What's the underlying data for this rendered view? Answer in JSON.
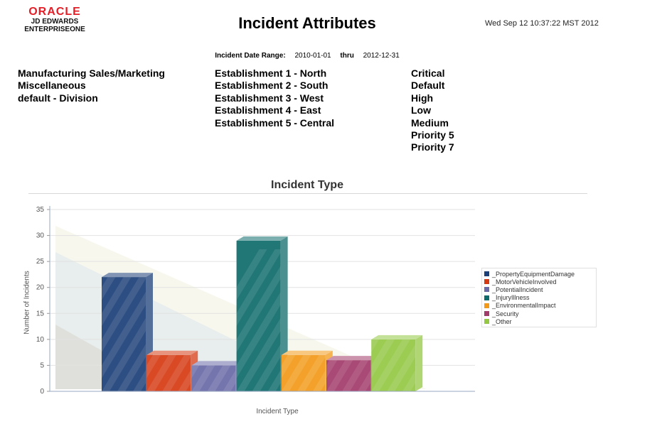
{
  "header": {
    "brand": "ORACLE",
    "product_line1": "JD EDWARDS",
    "product_line2": "ENTERPRISEONE",
    "title": "Incident Attributes",
    "timestamp": "Wed Sep 12 10:37:22 MST 2012"
  },
  "date_range": {
    "label": "Incident Date Range:",
    "from": "2010-01-01",
    "thru_label": "thru",
    "to": "2012-12-31"
  },
  "filters": {
    "business_units": [
      "Manufacturing Sales/Marketing",
      "Miscellaneous",
      "default - Division"
    ],
    "establishments": [
      "Establishment 1 - North",
      "Establishment 2 - South",
      "Establishment 3 - West",
      "Establishment 4 - East",
      "Establishment 5 - Central"
    ],
    "priorities": [
      "Critical",
      "Default",
      "High",
      "Low",
      "Medium",
      "Priority 5",
      "Priority 7"
    ]
  },
  "colors": {
    "_PropertyEquipmentDamage": "#1b3f78",
    "_MotorVehicleInvolved": "#d63a12",
    "_PotentialIncident": "#6a6aa8",
    "_InjuryIllness": "#0f6b6b",
    "_EnvironmentalImpact": "#f29a18",
    "_Security": "#a23a6a",
    "_Other": "#94c843"
  },
  "chart_data": {
    "type": "bar",
    "title": "Incident Type",
    "xlabel": "Incident Type",
    "ylabel": "Number of Incidents",
    "ylim": [
      0,
      35
    ],
    "yticks": [
      0,
      5,
      10,
      15,
      20,
      25,
      30,
      35
    ],
    "grid": true,
    "legend_position": "right",
    "series": [
      {
        "name": "_PropertyEquipmentDamage",
        "values": [
          22
        ]
      },
      {
        "name": "_MotorVehicleInvolved",
        "values": [
          7
        ]
      },
      {
        "name": "_PotentialIncident",
        "values": [
          5
        ]
      },
      {
        "name": "_InjuryIllness",
        "values": [
          29
        ]
      },
      {
        "name": "_EnvironmentalImpact",
        "values": [
          7
        ]
      },
      {
        "name": "_Security",
        "values": [
          6
        ]
      },
      {
        "name": "_Other",
        "values": [
          10
        ]
      }
    ]
  }
}
